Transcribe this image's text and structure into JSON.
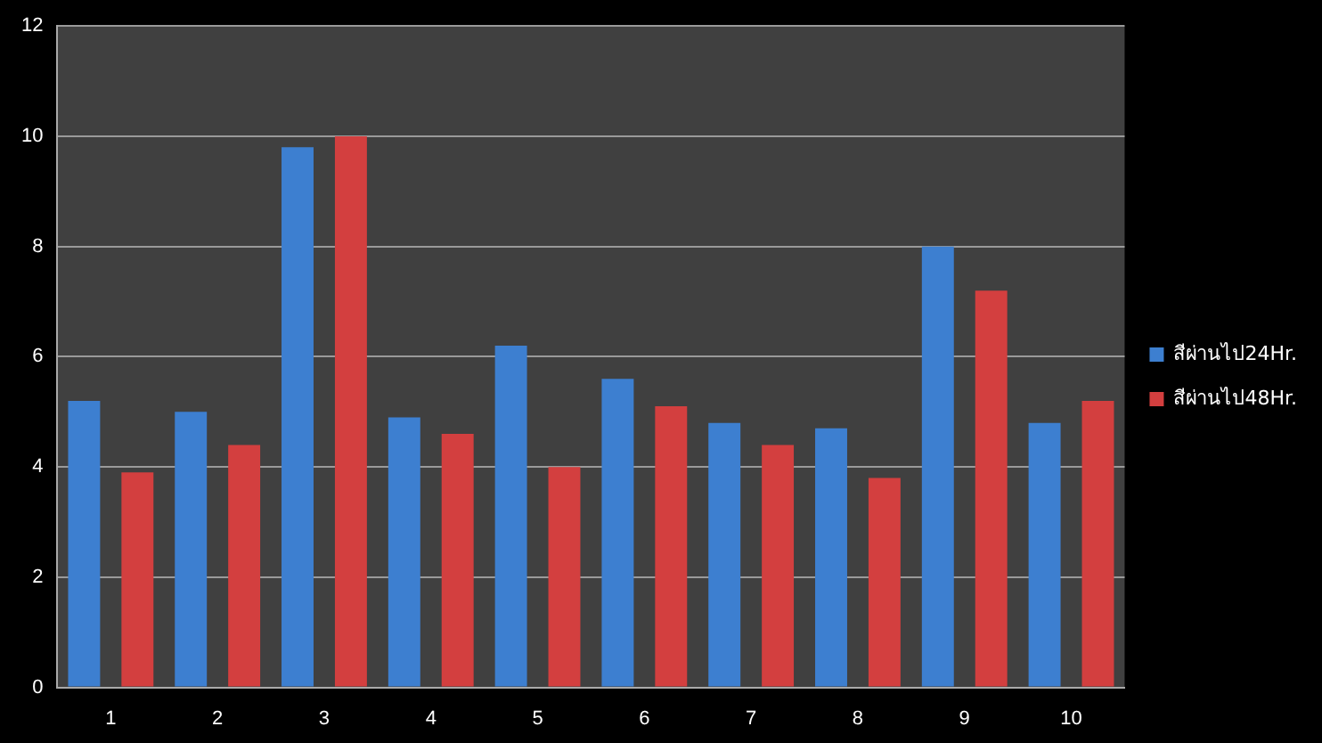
{
  "chart_data": {
    "type": "bar",
    "categories": [
      "1",
      "2",
      "3",
      "4",
      "5",
      "6",
      "7",
      "8",
      "9",
      "10"
    ],
    "series": [
      {
        "name": "สีผ่านไป24Hr.",
        "color": "#3d7fd0",
        "values": [
          5.2,
          5.0,
          9.8,
          4.9,
          6.2,
          5.6,
          4.8,
          4.7,
          8.0,
          4.8
        ]
      },
      {
        "name": "สีผ่านไป48Hr.",
        "color": "#d33f3f",
        "values": [
          3.9,
          4.4,
          10.0,
          4.6,
          4.0,
          5.1,
          4.4,
          3.8,
          7.2,
          5.2
        ]
      }
    ],
    "ylim": [
      0,
      12
    ],
    "yticks": [
      0,
      2,
      4,
      6,
      8,
      10,
      12
    ],
    "grid": "y",
    "legend": "right"
  }
}
